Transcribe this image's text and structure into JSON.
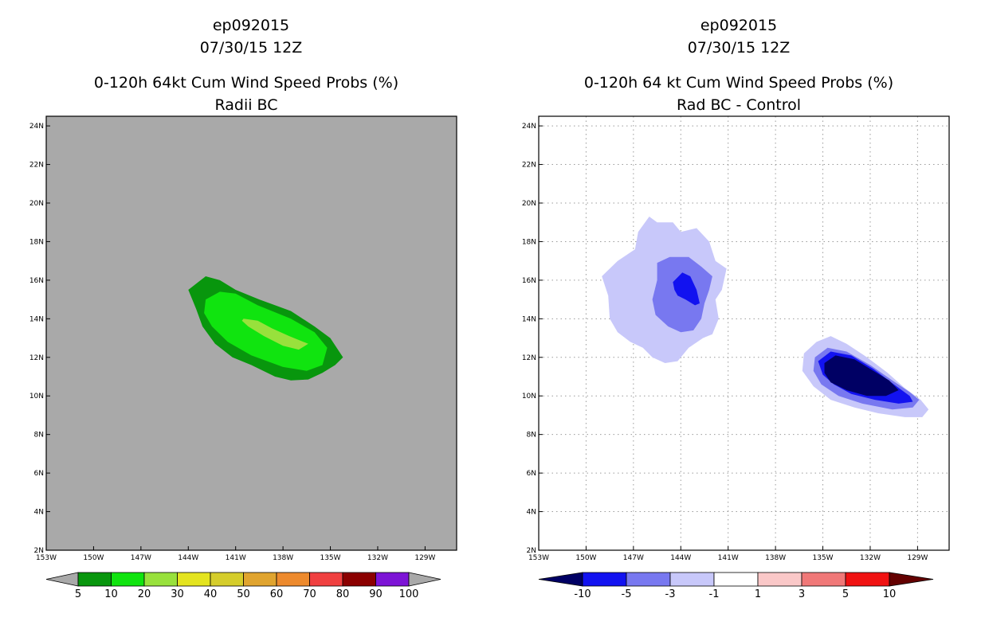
{
  "chart_data": [
    {
      "type": "heatmap",
      "storm_id": "ep092015",
      "date": "07/30/15 12Z",
      "title": "0-120h 64kt Cum Wind Speed Probs (%)",
      "subtitle": "Radii BC",
      "lon_range": [
        -153,
        -127
      ],
      "lat_range": [
        2,
        24.5
      ],
      "x_ticks": [
        -153,
        -150,
        -147,
        -144,
        -141,
        -138,
        -135,
        -132,
        -129
      ],
      "x_tick_labels": [
        "153W",
        "150W",
        "147W",
        "144W",
        "141W",
        "138W",
        "135W",
        "132W",
        "129W"
      ],
      "y_ticks": [
        2,
        4,
        6,
        8,
        10,
        12,
        14,
        16,
        18,
        20,
        22,
        24
      ],
      "y_tick_labels": [
        "2N",
        "4N",
        "6N",
        "8N",
        "10N",
        "12N",
        "14N",
        "16N",
        "18N",
        "20N",
        "22N",
        "24N"
      ],
      "grid": false,
      "background_color": "#a9a9a9",
      "contours": [
        {
          "level": 5,
          "color": "#08960d",
          "polygon": [
            [
              -144.0,
              15.5
            ],
            [
              -142.9,
              16.2
            ],
            [
              -142.0,
              16.0
            ],
            [
              -141.0,
              15.5
            ],
            [
              -139.5,
              15.0
            ],
            [
              -137.5,
              14.4
            ],
            [
              -136.0,
              13.6
            ],
            [
              -135.0,
              13.0
            ],
            [
              -134.2,
              12.0
            ],
            [
              -134.7,
              11.6
            ],
            [
              -135.5,
              11.2
            ],
            [
              -136.4,
              10.85
            ],
            [
              -137.5,
              10.8
            ],
            [
              -138.5,
              11.0
            ],
            [
              -140.0,
              11.6
            ],
            [
              -141.2,
              12.0
            ],
            [
              -142.3,
              12.7
            ],
            [
              -143.1,
              13.6
            ],
            [
              -143.5,
              14.5
            ]
          ]
        },
        {
          "level": 10,
          "color": "#10e40f",
          "polygon": [
            [
              -142.9,
              15.0
            ],
            [
              -142.0,
              15.4
            ],
            [
              -141.0,
              15.3
            ],
            [
              -139.6,
              14.7
            ],
            [
              -137.5,
              14.0
            ],
            [
              -136.0,
              13.3
            ],
            [
              -135.2,
              12.5
            ],
            [
              -135.5,
              11.6
            ],
            [
              -136.5,
              11.3
            ],
            [
              -138.0,
              11.5
            ],
            [
              -140.0,
              12.1
            ],
            [
              -141.5,
              12.8
            ],
            [
              -142.5,
              13.6
            ],
            [
              -143.0,
              14.3
            ]
          ]
        },
        {
          "level": 20,
          "color": "#98e13c",
          "polygon": [
            [
              -140.5,
              14.0
            ],
            [
              -139.6,
              13.9
            ],
            [
              -138.7,
              13.5
            ],
            [
              -137.6,
              13.1
            ],
            [
              -136.4,
              12.7
            ],
            [
              -137.0,
              12.4
            ],
            [
              -138.0,
              12.6
            ],
            [
              -139.2,
              13.1
            ],
            [
              -140.2,
              13.6
            ],
            [
              -140.6,
              13.9
            ]
          ]
        }
      ],
      "colorbar": {
        "labels": [
          "5",
          "10",
          "20",
          "30",
          "40",
          "50",
          "60",
          "70",
          "80",
          "90",
          "100"
        ],
        "colors": [
          "#08960d",
          "#10e40f",
          "#98e13c",
          "#e4e41f",
          "#d5cd2b",
          "#e0a42f",
          "#ed8a2d",
          "#f04040",
          "#8b0000",
          "#7d14d6"
        ],
        "under_color": "#a9a9a9",
        "over_color": "#a9a9a9"
      }
    },
    {
      "type": "heatmap",
      "storm_id": "ep092015",
      "date": "07/30/15 12Z",
      "title": "0-120h 64 kt Cum Wind Speed Probs (%)",
      "subtitle": "Rad BC - Control",
      "lon_range": [
        -153,
        -127
      ],
      "lat_range": [
        2,
        24.5
      ],
      "x_ticks": [
        -153,
        -150,
        -147,
        -144,
        -141,
        -138,
        -135,
        -132,
        -129
      ],
      "x_tick_labels": [
        "153W",
        "150W",
        "147W",
        "144W",
        "141W",
        "138W",
        "135W",
        "132W",
        "129W"
      ],
      "y_ticks": [
        2,
        4,
        6,
        8,
        10,
        12,
        14,
        16,
        18,
        20,
        22,
        24
      ],
      "y_tick_labels": [
        "2N",
        "4N",
        "6N",
        "8N",
        "10N",
        "12N",
        "14N",
        "16N",
        "18N",
        "20N",
        "22N",
        "24N"
      ],
      "grid": true,
      "background_color": "#ffffff",
      "contours": [
        {
          "level": -1,
          "color": "#c8c8fa",
          "polygon": [
            [
              -146.0,
              19.3
            ],
            [
              -145.5,
              19.0
            ],
            [
              -144.5,
              19.0
            ],
            [
              -144.0,
              18.5
            ],
            [
              -143.0,
              18.7
            ],
            [
              -142.2,
              18.0
            ],
            [
              -141.8,
              17.0
            ],
            [
              -141.1,
              16.6
            ],
            [
              -141.4,
              15.5
            ],
            [
              -141.8,
              15.0
            ],
            [
              -141.6,
              14.0
            ],
            [
              -142.0,
              13.2
            ],
            [
              -142.6,
              13.0
            ],
            [
              -143.5,
              12.5
            ],
            [
              -144.2,
              11.8
            ],
            [
              -145.0,
              11.7
            ],
            [
              -145.8,
              12.0
            ],
            [
              -146.4,
              12.5
            ],
            [
              -147.2,
              12.8
            ],
            [
              -148.0,
              13.3
            ],
            [
              -148.5,
              14.0
            ],
            [
              -148.6,
              15.2
            ],
            [
              -149.0,
              16.2
            ],
            [
              -148.0,
              17.0
            ],
            [
              -146.9,
              17.6
            ],
            [
              -146.7,
              18.5
            ]
          ]
        },
        {
          "level": -3,
          "color": "#7878f0",
          "polygon": [
            [
              -145.5,
              16.9
            ],
            [
              -144.7,
              17.2
            ],
            [
              -143.5,
              17.2
            ],
            [
              -142.7,
              16.7
            ],
            [
              -142.0,
              16.2
            ],
            [
              -142.2,
              15.5
            ],
            [
              -142.5,
              14.8
            ],
            [
              -142.7,
              14.0
            ],
            [
              -143.2,
              13.4
            ],
            [
              -144.0,
              13.3
            ],
            [
              -144.8,
              13.6
            ],
            [
              -145.6,
              14.2
            ],
            [
              -145.8,
              15.0
            ],
            [
              -145.5,
              16.0
            ]
          ]
        },
        {
          "level": -5,
          "color": "#1212f0",
          "polygon": [
            [
              -144.5,
              15.9
            ],
            [
              -143.9,
              16.4
            ],
            [
              -143.4,
              16.2
            ],
            [
              -143.0,
              15.5
            ],
            [
              -142.8,
              14.8
            ],
            [
              -143.1,
              14.7
            ],
            [
              -143.7,
              15.0
            ],
            [
              -144.2,
              15.2
            ],
            [
              -144.4,
              15.5
            ]
          ]
        },
        {
          "level": -1,
          "color": "#c8c8fa",
          "polygon": [
            [
              -136.2,
              12.2
            ],
            [
              -135.4,
              12.8
            ],
            [
              -134.5,
              13.1
            ],
            [
              -133.5,
              12.7
            ],
            [
              -132.2,
              12.0
            ],
            [
              -130.9,
              11.2
            ],
            [
              -129.8,
              10.4
            ],
            [
              -128.8,
              9.8
            ],
            [
              -128.3,
              9.3
            ],
            [
              -128.7,
              8.9
            ],
            [
              -129.8,
              8.9
            ],
            [
              -131.5,
              9.1
            ],
            [
              -133.0,
              9.4
            ],
            [
              -134.5,
              9.8
            ],
            [
              -135.6,
              10.5
            ],
            [
              -136.3,
              11.3
            ]
          ]
        },
        {
          "level": -3,
          "color": "#7878f0",
          "polygon": [
            [
              -135.5,
              12.0
            ],
            [
              -134.7,
              12.5
            ],
            [
              -133.5,
              12.3
            ],
            [
              -132.0,
              11.6
            ],
            [
              -130.6,
              10.8
            ],
            [
              -129.5,
              10.2
            ],
            [
              -128.9,
              9.8
            ],
            [
              -129.3,
              9.4
            ],
            [
              -130.6,
              9.3
            ],
            [
              -132.5,
              9.6
            ],
            [
              -134.0,
              10.0
            ],
            [
              -135.1,
              10.6
            ],
            [
              -135.6,
              11.3
            ]
          ]
        },
        {
          "level": -5,
          "color": "#1212f0",
          "polygon": [
            [
              -135.3,
              11.8
            ],
            [
              -134.5,
              12.3
            ],
            [
              -133.2,
              12.1
            ],
            [
              -131.8,
              11.4
            ],
            [
              -130.5,
              10.6
            ],
            [
              -129.5,
              10.0
            ],
            [
              -129.3,
              9.7
            ],
            [
              -130.2,
              9.6
            ],
            [
              -131.7,
              9.8
            ],
            [
              -133.2,
              10.1
            ],
            [
              -134.3,
              10.6
            ],
            [
              -135.0,
              11.1
            ]
          ]
        },
        {
          "level": -10,
          "color": "#000064",
          "polygon": [
            [
              -134.9,
              11.7
            ],
            [
              -134.2,
              12.1
            ],
            [
              -133.0,
              11.9
            ],
            [
              -131.8,
              11.3
            ],
            [
              -130.8,
              10.8
            ],
            [
              -130.2,
              10.3
            ],
            [
              -131.0,
              10.0
            ],
            [
              -132.2,
              10.0
            ],
            [
              -133.5,
              10.3
            ],
            [
              -134.5,
              10.7
            ],
            [
              -134.9,
              11.2
            ]
          ]
        }
      ],
      "colorbar": {
        "labels": [
          "-10",
          "-5",
          "-3",
          "-1",
          "1",
          "3",
          "5",
          "10"
        ],
        "colors": [
          "#1212f0",
          "#7878f0",
          "#c8c8fa",
          "#ffffff",
          "#fac8c8",
          "#f07878",
          "#f01212"
        ],
        "under_color": "#000064",
        "over_color": "#640000"
      }
    }
  ]
}
